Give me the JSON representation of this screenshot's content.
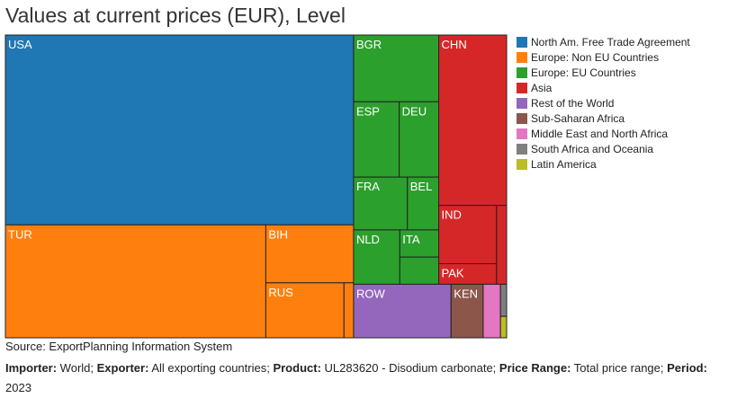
{
  "chart_data": {
    "type": "treemap",
    "title": "Values at current prices (EUR), Level",
    "groups": [
      {
        "name": "North Am. Free Trade Agreement",
        "color": "#1f77b4",
        "items": [
          {
            "label": "USA",
            "value": 1000
          }
        ]
      },
      {
        "name": "Europe: Non EU Countries",
        "color": "#ff7f0e",
        "items": [
          {
            "label": "TUR",
            "value": 445
          },
          {
            "label": "BIH",
            "value": 77
          },
          {
            "label": "RUS",
            "value": 65
          },
          {
            "label": "",
            "value": 8
          }
        ]
      },
      {
        "name": "Europe: EU Countries",
        "color": "#2ca02c",
        "items": [
          {
            "label": "BGR",
            "value": 86
          },
          {
            "label": "ESP",
            "value": 52
          },
          {
            "label": "DEU",
            "value": 45
          },
          {
            "label": "FRA",
            "value": 43
          },
          {
            "label": "BEL",
            "value": 25
          },
          {
            "label": "NLD",
            "value": 38
          },
          {
            "label": "ITA",
            "value": 16
          },
          {
            "label": "",
            "value": 16
          }
        ]
      },
      {
        "name": "Asia",
        "color": "#d62728",
        "items": [
          {
            "label": "CHN",
            "value": 175
          },
          {
            "label": "IND",
            "value": 51
          },
          {
            "label": "PAK",
            "value": 18
          },
          {
            "label": "",
            "value": 12
          }
        ]
      },
      {
        "name": "Rest of the World",
        "color": "#9467bd",
        "items": [
          {
            "label": "ROW",
            "value": 79
          }
        ]
      },
      {
        "name": "Sub-Saharan Africa",
        "color": "#8c564b",
        "items": [
          {
            "label": "KEN",
            "value": 26
          }
        ]
      },
      {
        "name": "Middle East and North Africa",
        "color": "#e377c2",
        "items": [
          {
            "label": "",
            "value": 14
          }
        ]
      },
      {
        "name": "South Africa and Oceania",
        "color": "#7f7f7f",
        "items": [
          {
            "label": "",
            "value": 3
          }
        ]
      },
      {
        "name": "Latin America",
        "color": "#bcbd22",
        "items": [
          {
            "label": "",
            "value": 2
          }
        ]
      }
    ]
  },
  "source": "Source: ExportPlanning Information System",
  "meta": {
    "importer_label": "Importer:",
    "importer_value": " World; ",
    "exporter_label": "Exporter:",
    "exporter_value": " All exporting countries; ",
    "product_label": "Product:",
    "product_value": " UL283620 - Disodium carbonate; ",
    "price_label": "Price Range:",
    "price_value": " Total price range; ",
    "period_label": "Period:",
    "period_value": " 2023"
  }
}
